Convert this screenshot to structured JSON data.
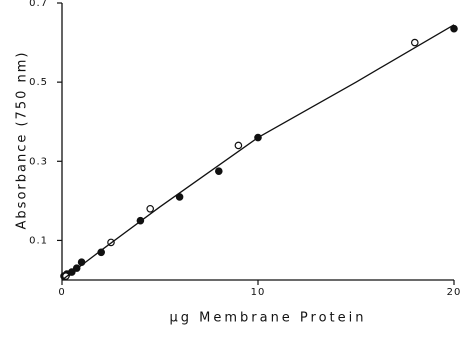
{
  "chart_data": {
    "type": "scatter",
    "x_label": "μg Membrane Protein",
    "y_label": "Absorbance (750 nm)",
    "xlim": [
      0,
      20
    ],
    "ylim": [
      0,
      0.7
    ],
    "xticks": [
      0,
      10,
      20
    ],
    "yticks": [
      0.1,
      0.3,
      0.5,
      0.7
    ],
    "series": [
      {
        "marker": "filled-circle",
        "color": "#111111",
        "x": [
          0.1,
          0.25,
          0.5,
          0.75,
          1,
          2,
          4,
          6,
          8,
          10,
          20
        ],
        "values": [
          0.01,
          0.015,
          0.02,
          0.03,
          0.045,
          0.07,
          0.15,
          0.21,
          0.275,
          0.36,
          0.635
        ]
      },
      {
        "marker": "open-circle",
        "color": "#111111",
        "x": [
          0.2,
          2.5,
          4.5,
          9,
          18
        ],
        "values": [
          0.01,
          0.095,
          0.18,
          0.34,
          0.6
        ]
      },
      {
        "marker": "line",
        "color": "#111111",
        "x": [
          0,
          2,
          5,
          10,
          15,
          20
        ],
        "values": [
          0,
          0.075,
          0.185,
          0.36,
          0.5,
          0.645
        ]
      }
    ]
  }
}
